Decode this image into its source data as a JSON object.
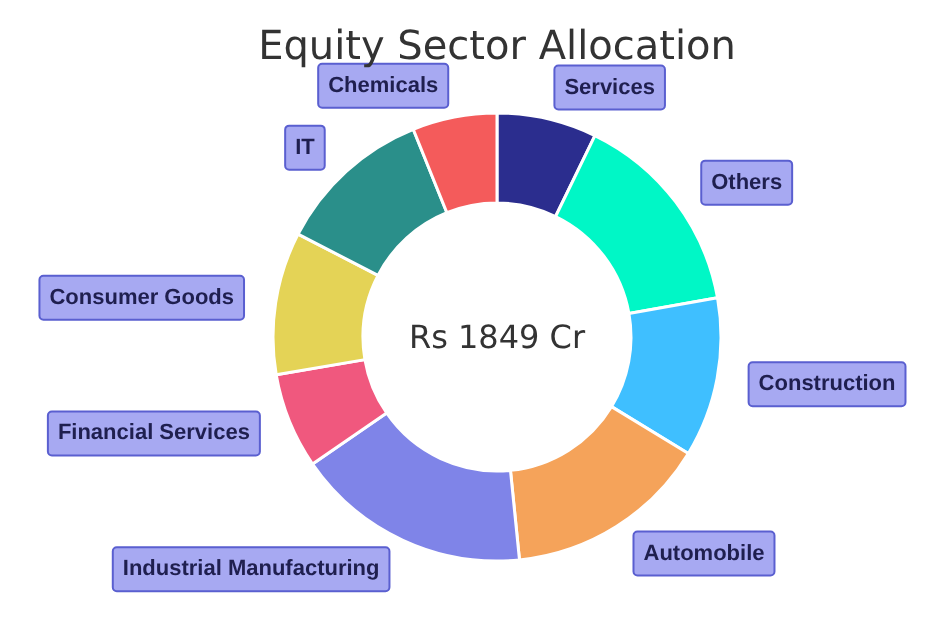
{
  "chart_data": {
    "type": "donut",
    "title": "Equity Sector Allocation",
    "annotations": [
      "Rs 1849 Cr"
    ],
    "categories": [
      "Services",
      "Others",
      "Construction",
      "Automobile",
      "Industrial Manufacturing",
      "Financial Services",
      "Consumer Goods",
      "IT",
      "Chemicals"
    ],
    "values": [
      7.2,
      15.0,
      11.5,
      14.7,
      17.0,
      6.9,
      10.3,
      11.3,
      6.1
    ],
    "colors": [
      "#2b2d8e",
      "#00f7c6",
      "#3fbfff",
      "#f5a35a",
      "#7f84e8",
      "#f0587e",
      "#e4d356",
      "#2a8f8a",
      "#f45b5b"
    ]
  }
}
